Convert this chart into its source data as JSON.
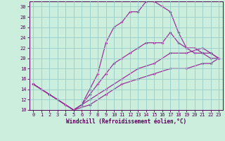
{
  "xlabel": "Windchill (Refroidissement éolien,°C)",
  "ylabel": "",
  "xlim": [
    -0.5,
    23.5
  ],
  "ylim": [
    10,
    31
  ],
  "xticks": [
    0,
    1,
    2,
    3,
    4,
    5,
    6,
    7,
    8,
    9,
    10,
    11,
    12,
    13,
    14,
    15,
    16,
    17,
    18,
    19,
    20,
    21,
    22,
    23
  ],
  "yticks": [
    10,
    12,
    14,
    16,
    18,
    20,
    22,
    24,
    26,
    28,
    30
  ],
  "background_color": "#cceedd",
  "line_color": "#993399",
  "grid_color": "#99cccc",
  "lines": [
    {
      "x": [
        0,
        1,
        2,
        3,
        4,
        5,
        6,
        7,
        8,
        9,
        10,
        11,
        12,
        13,
        14,
        15,
        16,
        17,
        18,
        19,
        20,
        21,
        22,
        23
      ],
      "y": [
        15,
        14,
        13,
        12,
        11,
        10,
        11,
        14,
        17,
        23,
        26,
        27,
        29,
        29,
        31,
        31,
        30,
        29,
        25,
        22,
        21,
        21,
        20,
        20
      ]
    },
    {
      "x": [
        0,
        2,
        5,
        6,
        7,
        8,
        9,
        10,
        11,
        12,
        13,
        14,
        15,
        16,
        17,
        18,
        19,
        20,
        21,
        22,
        23
      ],
      "y": [
        15,
        13,
        10,
        11,
        13,
        15,
        17,
        19,
        20,
        21,
        22,
        23,
        23,
        23,
        25,
        23,
        22,
        22,
        21,
        21,
        20
      ]
    },
    {
      "x": [
        0,
        2,
        5,
        7,
        9,
        11,
        13,
        15,
        17,
        19,
        21,
        22,
        23
      ],
      "y": [
        15,
        13,
        10,
        12,
        14,
        16,
        18,
        19,
        21,
        21,
        22,
        21,
        20
      ]
    },
    {
      "x": [
        0,
        2,
        5,
        7,
        9,
        11,
        13,
        15,
        17,
        19,
        21,
        22,
        23
      ],
      "y": [
        15,
        13,
        10,
        11,
        13,
        15,
        16,
        17,
        18,
        18,
        19,
        19,
        20
      ]
    }
  ]
}
